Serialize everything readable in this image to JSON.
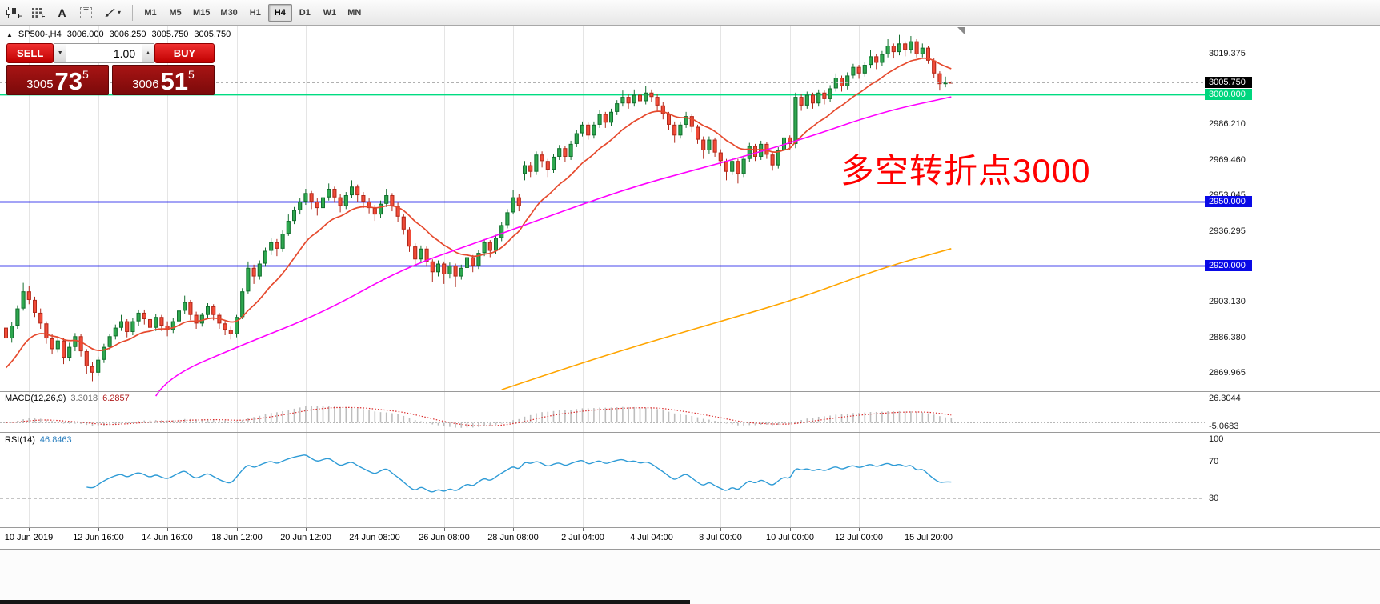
{
  "toolbar": {
    "icons": [
      {
        "name": "chart-template-icon",
        "glyph": "E"
      },
      {
        "name": "indicator-grid-icon",
        "glyph": "F"
      },
      {
        "name": "label-tool-icon",
        "glyph": "A"
      },
      {
        "name": "text-tool-icon",
        "glyph": "T"
      },
      {
        "name": "line-tool-icon",
        "glyph": "▾"
      }
    ],
    "timeframes": [
      {
        "label": "M1",
        "active": false
      },
      {
        "label": "M5",
        "active": false
      },
      {
        "label": "M15",
        "active": false
      },
      {
        "label": "M30",
        "active": false
      },
      {
        "label": "H1",
        "active": false
      },
      {
        "label": "H4",
        "active": true
      },
      {
        "label": "D1",
        "active": false
      },
      {
        "label": "W1",
        "active": false
      },
      {
        "label": "MN",
        "active": false
      }
    ]
  },
  "chart_header": {
    "collapse_glyph": "▲",
    "symbol": "SP500-,H4",
    "open": "3006.000",
    "high": "3006.250",
    "low": "3005.750",
    "close": "3005.750"
  },
  "trade_widget": {
    "sell_label": "SELL",
    "buy_label": "BUY",
    "volume": "1.00",
    "vol_down_glyph": "▼",
    "vol_up_glyph": "▲",
    "bid": {
      "prefix": "3005",
      "big": "73",
      "pip": "5"
    },
    "ask": {
      "prefix": "3006",
      "big": "51",
      "pip": "5"
    }
  },
  "annotation": {
    "text": "多空转折点3000",
    "color": "#ff0000"
  },
  "price_axis": {
    "ticks": [
      "3019.375",
      "2986.210",
      "2969.460",
      "2953.045",
      "2936.295",
      "2903.130",
      "2886.380",
      "2869.965"
    ],
    "tags": [
      {
        "price": 3005.75,
        "label": "3005.750",
        "bg": "#000000",
        "fg": "#ffffff"
      },
      {
        "price": 3000.0,
        "label": "3000.000",
        "bg": "#00d67e",
        "fg": "#ffffff"
      },
      {
        "price": 2950.0,
        "label": "2950.000",
        "bg": "#0a0ae6",
        "fg": "#ffffff"
      },
      {
        "price": 2920.0,
        "label": "2920.000",
        "bg": "#0a0ae6",
        "fg": "#ffffff"
      }
    ]
  },
  "time_axis": {
    "labels": [
      {
        "text": "10 Jun 2019",
        "bar": 4
      },
      {
        "text": "12 Jun 16:00",
        "bar": 16
      },
      {
        "text": "14 Jun 16:00",
        "bar": 28
      },
      {
        "text": "18 Jun 12:00",
        "bar": 40
      },
      {
        "text": "20 Jun 12:00",
        "bar": 52
      },
      {
        "text": "24 Jun 08:00",
        "bar": 64
      },
      {
        "text": "26 Jun 08:00",
        "bar": 76
      },
      {
        "text": "28 Jun 08:00",
        "bar": 88
      },
      {
        "text": "2 Jul 04:00",
        "bar": 100
      },
      {
        "text": "4 Jul 04:00",
        "bar": 112
      },
      {
        "text": "8 Jul 00:00",
        "bar": 124
      },
      {
        "text": "10 Jul 00:00",
        "bar": 136
      },
      {
        "text": "12 Jul 00:00",
        "bar": 148
      },
      {
        "text": "15 Jul 20:00",
        "bar": 160
      }
    ]
  },
  "indicators": {
    "macd": {
      "label": "MACD(12,26,9)",
      "value_main": "3.3018",
      "value_signal": "6.2857",
      "axis_top": "26.3044",
      "axis_bottom": "-5.0683",
      "fast": 12,
      "slow": 26,
      "signal": 9,
      "histogram_color": "#bdbdbd",
      "signal_color": "#d92b2b"
    },
    "rsi": {
      "label": "RSI(14)",
      "value": "46.8463",
      "period": 14,
      "axis": [
        "100",
        "70",
        "30"
      ],
      "levels": [
        70,
        30
      ],
      "line_color": "#2e9bd6"
    }
  },
  "chart_data": {
    "type": "candlestick",
    "symbol": "SP500-",
    "period": "H4",
    "title": "SP500- H4 candlestick chart with MA overlays, MACD and RSI",
    "price_range": [
      2861.3,
      3032.0
    ],
    "macd_range": [
      -8,
      27
    ],
    "rsi_range": [
      0,
      100
    ],
    "colors": {
      "up": "#2ea84f",
      "up_border": "#156f30",
      "down": "#f14b38",
      "down_border": "#b02a1c"
    },
    "hlines": [
      {
        "price": 3000.0,
        "color": "#00dc82",
        "name": "support-resistance-3000"
      },
      {
        "price": 2950.0,
        "color": "#0a0ae6",
        "name": "support-2950"
      },
      {
        "price": 2920.0,
        "color": "#0a0ae6",
        "name": "support-2920"
      }
    ],
    "bid_line": {
      "price": 3005.75,
      "color": "#b0b0b0"
    },
    "overlays": {
      "ma_fast": {
        "type": "ema",
        "period": 13,
        "color": "#e64a2e"
      },
      "ma_mid": {
        "type": "polyline",
        "color": "#ff00ff",
        "points": [
          [
            26,
            2859
          ],
          [
            28,
            2868
          ],
          [
            41,
            2883
          ],
          [
            55,
            2898
          ],
          [
            69,
            2919
          ],
          [
            83,
            2932
          ],
          [
            97,
            2946
          ],
          [
            110,
            2958
          ],
          [
            124,
            2968
          ],
          [
            138,
            2979
          ],
          [
            152,
            2992
          ],
          [
            164,
            2999
          ]
        ]
      },
      "ma_slow": {
        "type": "polyline",
        "color": "#ffa500",
        "points": [
          [
            86,
            2862
          ],
          [
            97,
            2872
          ],
          [
            110,
            2883
          ],
          [
            124,
            2894
          ],
          [
            138,
            2905
          ],
          [
            152,
            2919
          ],
          [
            164,
            2928
          ]
        ]
      }
    },
    "candles": [
      [
        2891,
        2893,
        2884.5,
        2886
      ],
      [
        2886,
        2893.5,
        2884,
        2892
      ],
      [
        2892,
        2901.5,
        2890.5,
        2900
      ],
      [
        2900,
        2912,
        2899,
        2908
      ],
      [
        2908,
        2910.5,
        2902,
        2904
      ],
      [
        2904,
        2905.5,
        2896,
        2898
      ],
      [
        2898,
        2900,
        2890.5,
        2893
      ],
      [
        2893,
        2894,
        2883.5,
        2886
      ],
      [
        2886,
        2888,
        2878.5,
        2881
      ],
      [
        2881,
        2887,
        2879.5,
        2885
      ],
      [
        2885,
        2886,
        2874,
        2877
      ],
      [
        2877,
        2884,
        2875.5,
        2882
      ],
      [
        2882,
        2888.5,
        2880,
        2887
      ],
      [
        2887,
        2888,
        2877.5,
        2880
      ],
      [
        2880,
        2881,
        2869.5,
        2873
      ],
      [
        2873,
        2875,
        2866,
        2870
      ],
      [
        2870,
        2877.5,
        2868.5,
        2876
      ],
      [
        2876,
        2883.5,
        2874.5,
        2882
      ],
      [
        2882,
        2888,
        2880.5,
        2887
      ],
      [
        2887,
        2892.5,
        2885.5,
        2891
      ],
      [
        2891,
        2897,
        2889.5,
        2894
      ],
      [
        2894,
        2895,
        2886.5,
        2889
      ],
      [
        2889,
        2895.5,
        2887.5,
        2894
      ],
      [
        2894,
        2899.5,
        2892,
        2898
      ],
      [
        2898,
        2899.5,
        2892.5,
        2895
      ],
      [
        2895,
        2896,
        2888.5,
        2891
      ],
      [
        2891,
        2897.5,
        2889.5,
        2896
      ],
      [
        2896,
        2897,
        2889.5,
        2892
      ],
      [
        2892,
        2894,
        2887,
        2890
      ],
      [
        2890,
        2895.5,
        2888.5,
        2894
      ],
      [
        2894,
        2900,
        2892.5,
        2899
      ],
      [
        2899,
        2906,
        2897.5,
        2903
      ],
      [
        2903,
        2904,
        2894.5,
        2897
      ],
      [
        2897,
        2898.5,
        2890.5,
        2893
      ],
      [
        2893,
        2898,
        2891.5,
        2897
      ],
      [
        2897,
        2902.5,
        2895,
        2901
      ],
      [
        2901,
        2902,
        2894.5,
        2897
      ],
      [
        2897,
        2898,
        2890.5,
        2893
      ],
      [
        2893,
        2894.5,
        2887.5,
        2890
      ],
      [
        2890,
        2891.5,
        2885.5,
        2888
      ],
      [
        2888,
        2897,
        2886.5,
        2896
      ],
      [
        2896,
        2909.5,
        2895,
        2908
      ],
      [
        2908,
        2922,
        2907,
        2919
      ],
      [
        2919,
        2920.5,
        2911.5,
        2915
      ],
      [
        2915,
        2922.5,
        2913.5,
        2921
      ],
      [
        2921,
        2928.5,
        2919.5,
        2927
      ],
      [
        2927,
        2933,
        2925,
        2931
      ],
      [
        2931,
        2932.5,
        2924.5,
        2928
      ],
      [
        2928,
        2936.5,
        2926.5,
        2935
      ],
      [
        2935,
        2944,
        2934,
        2941
      ],
      [
        2941,
        2947.5,
        2939.5,
        2946
      ],
      [
        2946,
        2951.5,
        2944,
        2950
      ],
      [
        2950,
        2956,
        2948.5,
        2954
      ],
      [
        2954,
        2955,
        2946.5,
        2950
      ],
      [
        2950,
        2951.5,
        2943.5,
        2947
      ],
      [
        2947,
        2953.5,
        2945.5,
        2952
      ],
      [
        2952,
        2958.5,
        2950.5,
        2956
      ],
      [
        2956,
        2957,
        2949.5,
        2952
      ],
      [
        2952,
        2953.5,
        2945,
        2948
      ],
      [
        2948,
        2954.5,
        2946.5,
        2953
      ],
      [
        2953,
        2960,
        2951.5,
        2957
      ],
      [
        2957,
        2958,
        2950,
        2953
      ],
      [
        2953,
        2954.5,
        2947,
        2950
      ],
      [
        2950,
        2951.5,
        2944.5,
        2947
      ],
      [
        2947,
        2948.5,
        2941,
        2944
      ],
      [
        2944,
        2950.5,
        2942.5,
        2949
      ],
      [
        2949,
        2956,
        2947.5,
        2953
      ],
      [
        2953,
        2954,
        2945.5,
        2948
      ],
      [
        2948,
        2949.5,
        2940.5,
        2943
      ],
      [
        2943,
        2944,
        2934.5,
        2937
      ],
      [
        2937,
        2938,
        2926.5,
        2929
      ],
      [
        2929,
        2930.5,
        2920,
        2923
      ],
      [
        2923,
        2929.5,
        2921.5,
        2928
      ],
      [
        2928,
        2929,
        2919.5,
        2922
      ],
      [
        2922,
        2923,
        2912.5,
        2917
      ],
      [
        2917,
        2922.5,
        2915,
        2921
      ],
      [
        2921,
        2922,
        2911.5,
        2916
      ],
      [
        2916,
        2921.5,
        2914,
        2920
      ],
      [
        2920,
        2921,
        2910,
        2915
      ],
      [
        2915,
        2920.5,
        2913.5,
        2919
      ],
      [
        2919,
        2925.5,
        2917.5,
        2924
      ],
      [
        2924,
        2925,
        2917,
        2920
      ],
      [
        2920,
        2927.5,
        2918.5,
        2926
      ],
      [
        2926,
        2932.5,
        2924.5,
        2931
      ],
      [
        2931,
        2932,
        2924,
        2927
      ],
      [
        2927,
        2934.5,
        2925.5,
        2933
      ],
      [
        2933,
        2940.5,
        2931.5,
        2939
      ],
      [
        2939,
        2946.5,
        2937.5,
        2945
      ],
      [
        2945,
        2955.5,
        2944,
        2952
      ],
      [
        2952,
        2953.5,
        2945.5,
        2948
      ],
      [
        2963,
        2969,
        2960,
        2967
      ],
      [
        2967,
        2968.5,
        2961.5,
        2964
      ],
      [
        2964,
        2973.5,
        2962.5,
        2972
      ],
      [
        2972,
        2973.5,
        2966,
        2969
      ],
      [
        2969,
        2970,
        2961.5,
        2965
      ],
      [
        2965,
        2972.5,
        2963.5,
        2971
      ],
      [
        2971,
        2976.5,
        2969.5,
        2975
      ],
      [
        2975,
        2976,
        2968.5,
        2971
      ],
      [
        2971,
        2978.5,
        2969.5,
        2977
      ],
      [
        2977,
        2983.5,
        2975.5,
        2982
      ],
      [
        2982,
        2987.5,
        2980.5,
        2986
      ],
      [
        2986,
        2987,
        2979,
        2981
      ],
      [
        2981,
        2987.5,
        2979.5,
        2986
      ],
      [
        2986,
        2993,
        2984.5,
        2991
      ],
      [
        2991,
        2992,
        2984.5,
        2987
      ],
      [
        2987,
        2993.5,
        2985.5,
        2992
      ],
      [
        2992,
        2997.5,
        2990.5,
        2996
      ],
      [
        2996,
        3002,
        2994.5,
        2999
      ],
      [
        2999,
        3000.5,
        2993.5,
        2996
      ],
      [
        2996,
        3002.5,
        2994.5,
        3000
      ],
      [
        3000,
        3001.5,
        2994.5,
        2997
      ],
      [
        2997,
        3004,
        2995.5,
        3001
      ],
      [
        3001,
        3002.5,
        2996.5,
        2999
      ],
      [
        2999,
        3000.5,
        2992.5,
        2995
      ],
      [
        2995,
        2996.5,
        2988.5,
        2991
      ],
      [
        2991,
        2992,
        2983.5,
        2986
      ],
      [
        2986,
        2987.5,
        2977.5,
        2981
      ],
      [
        2981,
        2987.5,
        2979.5,
        2986
      ],
      [
        2986,
        2992,
        2984.5,
        2990
      ],
      [
        2990,
        2991,
        2982.5,
        2985
      ],
      [
        2985,
        2986,
        2977,
        2979
      ],
      [
        2979,
        2980.5,
        2970,
        2974
      ],
      [
        2974,
        2980.5,
        2972.5,
        2979
      ],
      [
        2979,
        2980,
        2971,
        2973
      ],
      [
        2973,
        2974.5,
        2966.5,
        2969
      ],
      [
        2969,
        2970,
        2960,
        2964
      ],
      [
        2964,
        2970.5,
        2962.5,
        2969
      ],
      [
        2969,
        2970,
        2958.5,
        2963
      ],
      [
        2963,
        2971.5,
        2961.5,
        2970
      ],
      [
        2970,
        2977.5,
        2968.5,
        2976
      ],
      [
        2976,
        2977,
        2969,
        2971
      ],
      [
        2971,
        2978.5,
        2969.5,
        2977
      ],
      [
        2977,
        2978,
        2970,
        2972
      ],
      [
        2972,
        2973,
        2964.5,
        2967
      ],
      [
        2967,
        2975.5,
        2965.5,
        2974
      ],
      [
        2974,
        2981.5,
        2972.5,
        2980
      ],
      [
        2980,
        2981,
        2974,
        2977
      ],
      [
        2977,
        3001,
        2975,
        2999
      ],
      [
        2999,
        3000.5,
        2992.5,
        2995
      ],
      [
        2995,
        3001.5,
        2993.5,
        3000
      ],
      [
        3000,
        3001,
        2993.5,
        2996
      ],
      [
        2996,
        3002.5,
        2994.5,
        3001
      ],
      [
        3001,
        3002,
        2995.5,
        2998
      ],
      [
        2998,
        3004.5,
        2996.5,
        3003
      ],
      [
        3003,
        3010,
        3001.5,
        3008
      ],
      [
        3008,
        3009,
        3001.5,
        3004
      ],
      [
        3004,
        3010.5,
        3002.5,
        3009
      ],
      [
        3009,
        3014.5,
        3007.5,
        3013
      ],
      [
        3013,
        3014,
        3007.5,
        3010
      ],
      [
        3010,
        3015.5,
        3008.5,
        3014
      ],
      [
        3014,
        3021,
        3012.5,
        3018
      ],
      [
        3018,
        3019,
        3012,
        3015
      ],
      [
        3015,
        3020.5,
        3013.5,
        3019
      ],
      [
        3019,
        3026,
        3017.5,
        3023
      ],
      [
        3023,
        3024,
        3017,
        3020
      ],
      [
        3020,
        3028,
        3018.5,
        3024
      ],
      [
        3024,
        3025,
        3018,
        3021
      ],
      [
        3021,
        3027.5,
        3019.5,
        3025
      ],
      [
        3025,
        3026,
        3017.5,
        3019
      ],
      [
        3019,
        3024,
        3017.5,
        3022
      ],
      [
        3022,
        3023,
        3014.5,
        3016
      ],
      [
        3016,
        3017,
        3008,
        3010
      ],
      [
        3010,
        3011,
        3002,
        3005
      ],
      [
        3005,
        3008.5,
        3003.5,
        3006
      ],
      [
        3006,
        3006.25,
        3005.75,
        3005.75
      ]
    ]
  }
}
